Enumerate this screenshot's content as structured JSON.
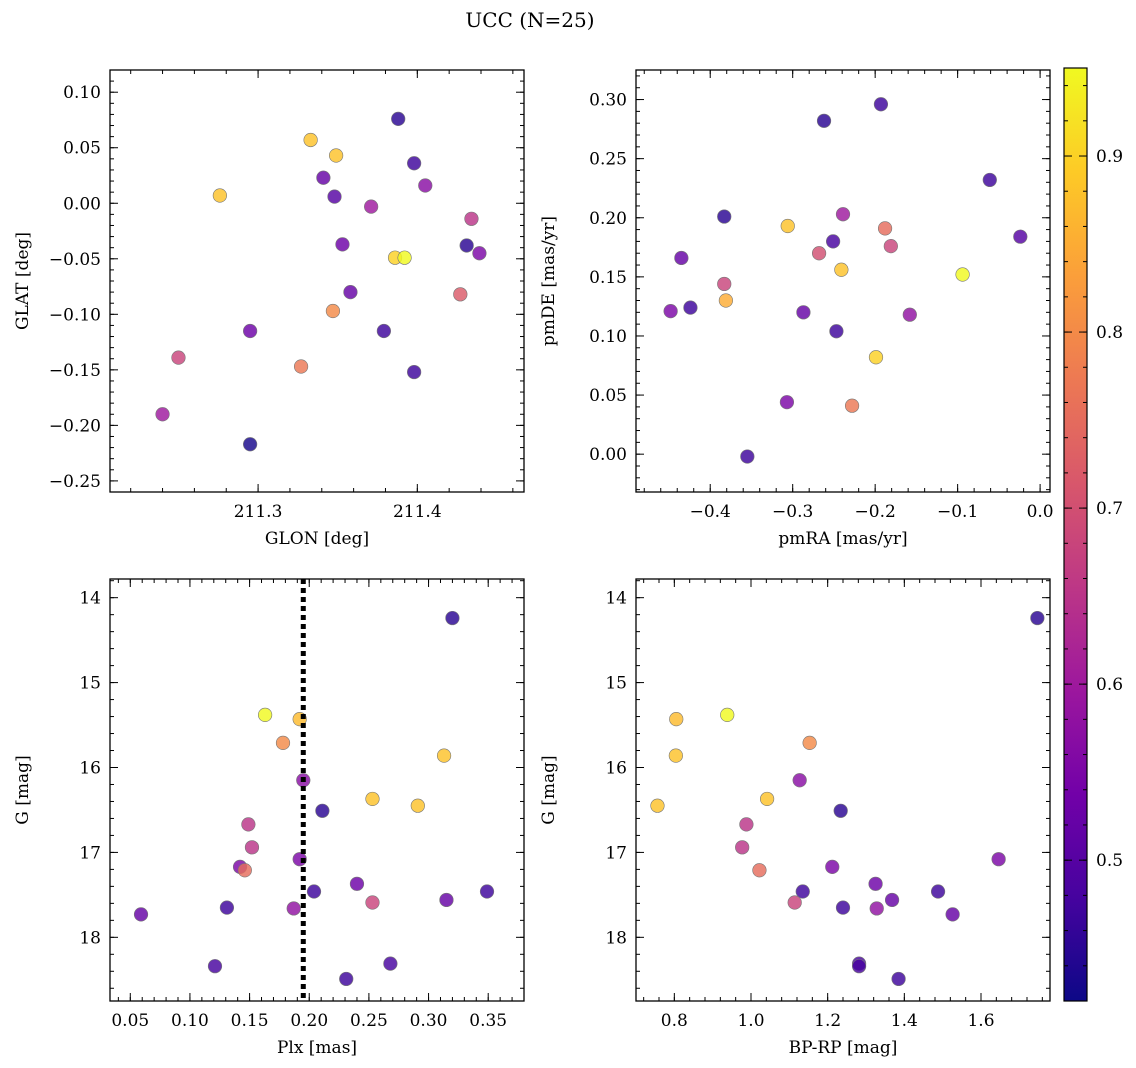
{
  "figure": {
    "title": "UCC (N=25)"
  },
  "colormap": {
    "name": "plasma",
    "range": [
      0.42,
      0.95
    ],
    "ticks": [
      0.5,
      0.6,
      0.7,
      0.8,
      0.9
    ],
    "stops": [
      "#0d0887",
      "#46039f",
      "#7201a8",
      "#9c179e",
      "#bd3786",
      "#d8576b",
      "#ed7953",
      "#fb9f3a",
      "#fdca26",
      "#f0f921"
    ]
  },
  "chart_data": [
    {
      "type": "scatter",
      "name": "glon-glat",
      "xlabel": "GLON [deg]",
      "ylabel": "GLAT [deg]",
      "xlim": [
        211.207,
        211.467
      ],
      "ylim": [
        -0.26,
        0.12
      ],
      "xticks": [
        211.3,
        211.4
      ],
      "yticks": [
        -0.25,
        -0.2,
        -0.15,
        -0.1,
        -0.05,
        0.0,
        0.05,
        0.1
      ],
      "xtick_labels": [
        "211.3",
        "211.4"
      ],
      "ytick_labels": [
        "−0.25",
        "−0.20",
        "−0.15",
        "−0.10",
        "−0.05",
        "0.00",
        "0.05",
        "0.10"
      ],
      "xminor_step": 0.02,
      "yminor_step": 0.01,
      "points": [
        {
          "x": 211.388,
          "y": 0.076,
          "c": 0.45
        },
        {
          "x": 211.333,
          "y": 0.057,
          "c": 0.88
        },
        {
          "x": 211.349,
          "y": 0.043,
          "c": 0.88
        },
        {
          "x": 211.398,
          "y": 0.036,
          "c": 0.47
        },
        {
          "x": 211.341,
          "y": 0.023,
          "c": 0.52
        },
        {
          "x": 211.405,
          "y": 0.016,
          "c": 0.57
        },
        {
          "x": 211.276,
          "y": 0.007,
          "c": 0.88
        },
        {
          "x": 211.348,
          "y": 0.006,
          "c": 0.5
        },
        {
          "x": 211.371,
          "y": -0.003,
          "c": 0.6
        },
        {
          "x": 211.434,
          "y": -0.014,
          "c": 0.65
        },
        {
          "x": 211.353,
          "y": -0.037,
          "c": 0.53
        },
        {
          "x": 211.431,
          "y": -0.038,
          "c": 0.45
        },
        {
          "x": 211.439,
          "y": -0.045,
          "c": 0.55
        },
        {
          "x": 211.386,
          "y": -0.049,
          "c": 0.9
        },
        {
          "x": 211.392,
          "y": -0.049,
          "c": 0.95
        },
        {
          "x": 211.358,
          "y": -0.08,
          "c": 0.52
        },
        {
          "x": 211.427,
          "y": -0.082,
          "c": 0.72
        },
        {
          "x": 211.347,
          "y": -0.097,
          "c": 0.8
        },
        {
          "x": 211.379,
          "y": -0.115,
          "c": 0.47
        },
        {
          "x": 211.295,
          "y": -0.115,
          "c": 0.53
        },
        {
          "x": 211.25,
          "y": -0.139,
          "c": 0.68
        },
        {
          "x": 211.327,
          "y": -0.147,
          "c": 0.77
        },
        {
          "x": 211.398,
          "y": -0.152,
          "c": 0.47
        },
        {
          "x": 211.24,
          "y": -0.19,
          "c": 0.6
        },
        {
          "x": 211.295,
          "y": -0.217,
          "c": 0.43
        }
      ]
    },
    {
      "type": "scatter",
      "name": "pmra-pmde",
      "xlabel": "pmRA [mas/yr]",
      "ylabel": "pmDE [mas/yr]",
      "xlim": [
        -0.49,
        0.012
      ],
      "ylim": [
        -0.032,
        0.325
      ],
      "xticks": [
        -0.4,
        -0.3,
        -0.2,
        -0.1,
        0.0
      ],
      "yticks": [
        0.0,
        0.05,
        0.1,
        0.15,
        0.2,
        0.25,
        0.3
      ],
      "xtick_labels": [
        "−0.4",
        "−0.3",
        "−0.2",
        "−0.1",
        "0.0"
      ],
      "ytick_labels": [
        "0.00",
        "0.05",
        "0.10",
        "0.15",
        "0.20",
        "0.25",
        "0.30"
      ],
      "xminor_step": 0.02,
      "yminor_step": 0.01,
      "points": [
        {
          "x": -0.193,
          "y": 0.296,
          "c": 0.47
        },
        {
          "x": -0.262,
          "y": 0.282,
          "c": 0.45
        },
        {
          "x": -0.061,
          "y": 0.232,
          "c": 0.47
        },
        {
          "x": -0.239,
          "y": 0.203,
          "c": 0.6
        },
        {
          "x": -0.383,
          "y": 0.201,
          "c": 0.45
        },
        {
          "x": -0.306,
          "y": 0.193,
          "c": 0.88
        },
        {
          "x": -0.188,
          "y": 0.191,
          "c": 0.75
        },
        {
          "x": -0.024,
          "y": 0.184,
          "c": 0.5
        },
        {
          "x": -0.251,
          "y": 0.18,
          "c": 0.48
        },
        {
          "x": -0.181,
          "y": 0.176,
          "c": 0.68
        },
        {
          "x": -0.268,
          "y": 0.17,
          "c": 0.7
        },
        {
          "x": -0.435,
          "y": 0.166,
          "c": 0.52
        },
        {
          "x": -0.241,
          "y": 0.156,
          "c": 0.88
        },
        {
          "x": -0.094,
          "y": 0.152,
          "c": 0.95
        },
        {
          "x": -0.383,
          "y": 0.144,
          "c": 0.68
        },
        {
          "x": -0.381,
          "y": 0.13,
          "c": 0.85
        },
        {
          "x": -0.424,
          "y": 0.124,
          "c": 0.47
        },
        {
          "x": -0.448,
          "y": 0.121,
          "c": 0.55
        },
        {
          "x": -0.287,
          "y": 0.12,
          "c": 0.52
        },
        {
          "x": -0.158,
          "y": 0.118,
          "c": 0.58
        },
        {
          "x": -0.247,
          "y": 0.104,
          "c": 0.47
        },
        {
          "x": -0.199,
          "y": 0.082,
          "c": 0.9
        },
        {
          "x": -0.307,
          "y": 0.044,
          "c": 0.55
        },
        {
          "x": -0.228,
          "y": 0.041,
          "c": 0.77
        },
        {
          "x": -0.355,
          "y": -0.002,
          "c": 0.47
        }
      ]
    },
    {
      "type": "scatter",
      "name": "plx-g",
      "xlabel": "Plx [mas]",
      "ylabel": "G [mag]",
      "xlim": [
        0.033,
        0.38
      ],
      "ylim": [
        18.75,
        13.78
      ],
      "xticks": [
        0.05,
        0.1,
        0.15,
        0.2,
        0.25,
        0.3,
        0.35
      ],
      "yticks": [
        14,
        15,
        16,
        17,
        18
      ],
      "xtick_labels": [
        "0.05",
        "0.10",
        "0.15",
        "0.20",
        "0.25",
        "0.30",
        "0.35"
      ],
      "ytick_labels": [
        "14",
        "15",
        "16",
        "17",
        "18"
      ],
      "xminor_step": 0.01,
      "yminor_step": 0.2,
      "vline": {
        "x": 0.195
      },
      "points": [
        {
          "x": 0.32,
          "y": 14.24,
          "c": 0.45
        },
        {
          "x": 0.163,
          "y": 15.38,
          "c": 0.95
        },
        {
          "x": 0.192,
          "y": 15.43,
          "c": 0.87
        },
        {
          "x": 0.178,
          "y": 15.71,
          "c": 0.8
        },
        {
          "x": 0.313,
          "y": 15.86,
          "c": 0.88
        },
        {
          "x": 0.195,
          "y": 16.15,
          "c": 0.57
        },
        {
          "x": 0.253,
          "y": 16.37,
          "c": 0.88
        },
        {
          "x": 0.291,
          "y": 16.45,
          "c": 0.88
        },
        {
          "x": 0.211,
          "y": 16.51,
          "c": 0.45
        },
        {
          "x": 0.149,
          "y": 16.67,
          "c": 0.65
        },
        {
          "x": 0.152,
          "y": 16.94,
          "c": 0.65
        },
        {
          "x": 0.192,
          "y": 17.08,
          "c": 0.55
        },
        {
          "x": 0.142,
          "y": 17.17,
          "c": 0.55
        },
        {
          "x": 0.146,
          "y": 17.21,
          "c": 0.75
        },
        {
          "x": 0.24,
          "y": 17.37,
          "c": 0.53
        },
        {
          "x": 0.204,
          "y": 17.46,
          "c": 0.47
        },
        {
          "x": 0.349,
          "y": 17.46,
          "c": 0.47
        },
        {
          "x": 0.315,
          "y": 17.56,
          "c": 0.52
        },
        {
          "x": 0.253,
          "y": 17.59,
          "c": 0.68
        },
        {
          "x": 0.131,
          "y": 17.65,
          "c": 0.47
        },
        {
          "x": 0.187,
          "y": 17.66,
          "c": 0.58
        },
        {
          "x": 0.059,
          "y": 17.73,
          "c": 0.52
        },
        {
          "x": 0.268,
          "y": 18.31,
          "c": 0.48
        },
        {
          "x": 0.121,
          "y": 18.34,
          "c": 0.48
        },
        {
          "x": 0.231,
          "y": 18.49,
          "c": 0.47
        }
      ]
    },
    {
      "type": "scatter",
      "name": "bprp-g",
      "xlabel": "BP-RP [mag]",
      "ylabel": "G [mag]",
      "xlim": [
        0.7,
        1.78
      ],
      "ylim": [
        18.75,
        13.78
      ],
      "xticks": [
        0.8,
        1.0,
        1.2,
        1.4,
        1.6
      ],
      "yticks": [
        14,
        15,
        16,
        17,
        18
      ],
      "xtick_labels": [
        "0.8",
        "1.0",
        "1.2",
        "1.4",
        "1.6"
      ],
      "ytick_labels": [
        "14",
        "15",
        "16",
        "17",
        "18"
      ],
      "xminor_step": 0.04,
      "yminor_step": 0.2,
      "points": [
        {
          "x": 1.747,
          "y": 14.24,
          "c": 0.45
        },
        {
          "x": 0.938,
          "y": 15.38,
          "c": 0.95
        },
        {
          "x": 0.805,
          "y": 15.43,
          "c": 0.87
        },
        {
          "x": 1.153,
          "y": 15.71,
          "c": 0.8
        },
        {
          "x": 0.804,
          "y": 15.86,
          "c": 0.88
        },
        {
          "x": 1.127,
          "y": 16.15,
          "c": 0.57
        },
        {
          "x": 1.042,
          "y": 16.37,
          "c": 0.88
        },
        {
          "x": 0.756,
          "y": 16.45,
          "c": 0.88
        },
        {
          "x": 1.234,
          "y": 16.51,
          "c": 0.45
        },
        {
          "x": 0.988,
          "y": 16.67,
          "c": 0.65
        },
        {
          "x": 0.977,
          "y": 16.94,
          "c": 0.65
        },
        {
          "x": 1.646,
          "y": 17.08,
          "c": 0.55
        },
        {
          "x": 1.212,
          "y": 17.17,
          "c": 0.55
        },
        {
          "x": 1.022,
          "y": 17.21,
          "c": 0.75
        },
        {
          "x": 1.325,
          "y": 17.37,
          "c": 0.53
        },
        {
          "x": 1.135,
          "y": 17.46,
          "c": 0.47
        },
        {
          "x": 1.488,
          "y": 17.46,
          "c": 0.47
        },
        {
          "x": 1.368,
          "y": 17.56,
          "c": 0.52
        },
        {
          "x": 1.114,
          "y": 17.59,
          "c": 0.68
        },
        {
          "x": 1.24,
          "y": 17.65,
          "c": 0.47
        },
        {
          "x": 1.328,
          "y": 17.66,
          "c": 0.58
        },
        {
          "x": 1.526,
          "y": 17.73,
          "c": 0.52
        },
        {
          "x": 1.282,
          "y": 18.31,
          "c": 0.48
        },
        {
          "x": 1.282,
          "y": 18.34,
          "c": 0.48
        },
        {
          "x": 1.385,
          "y": 18.49,
          "c": 0.47
        }
      ]
    }
  ]
}
